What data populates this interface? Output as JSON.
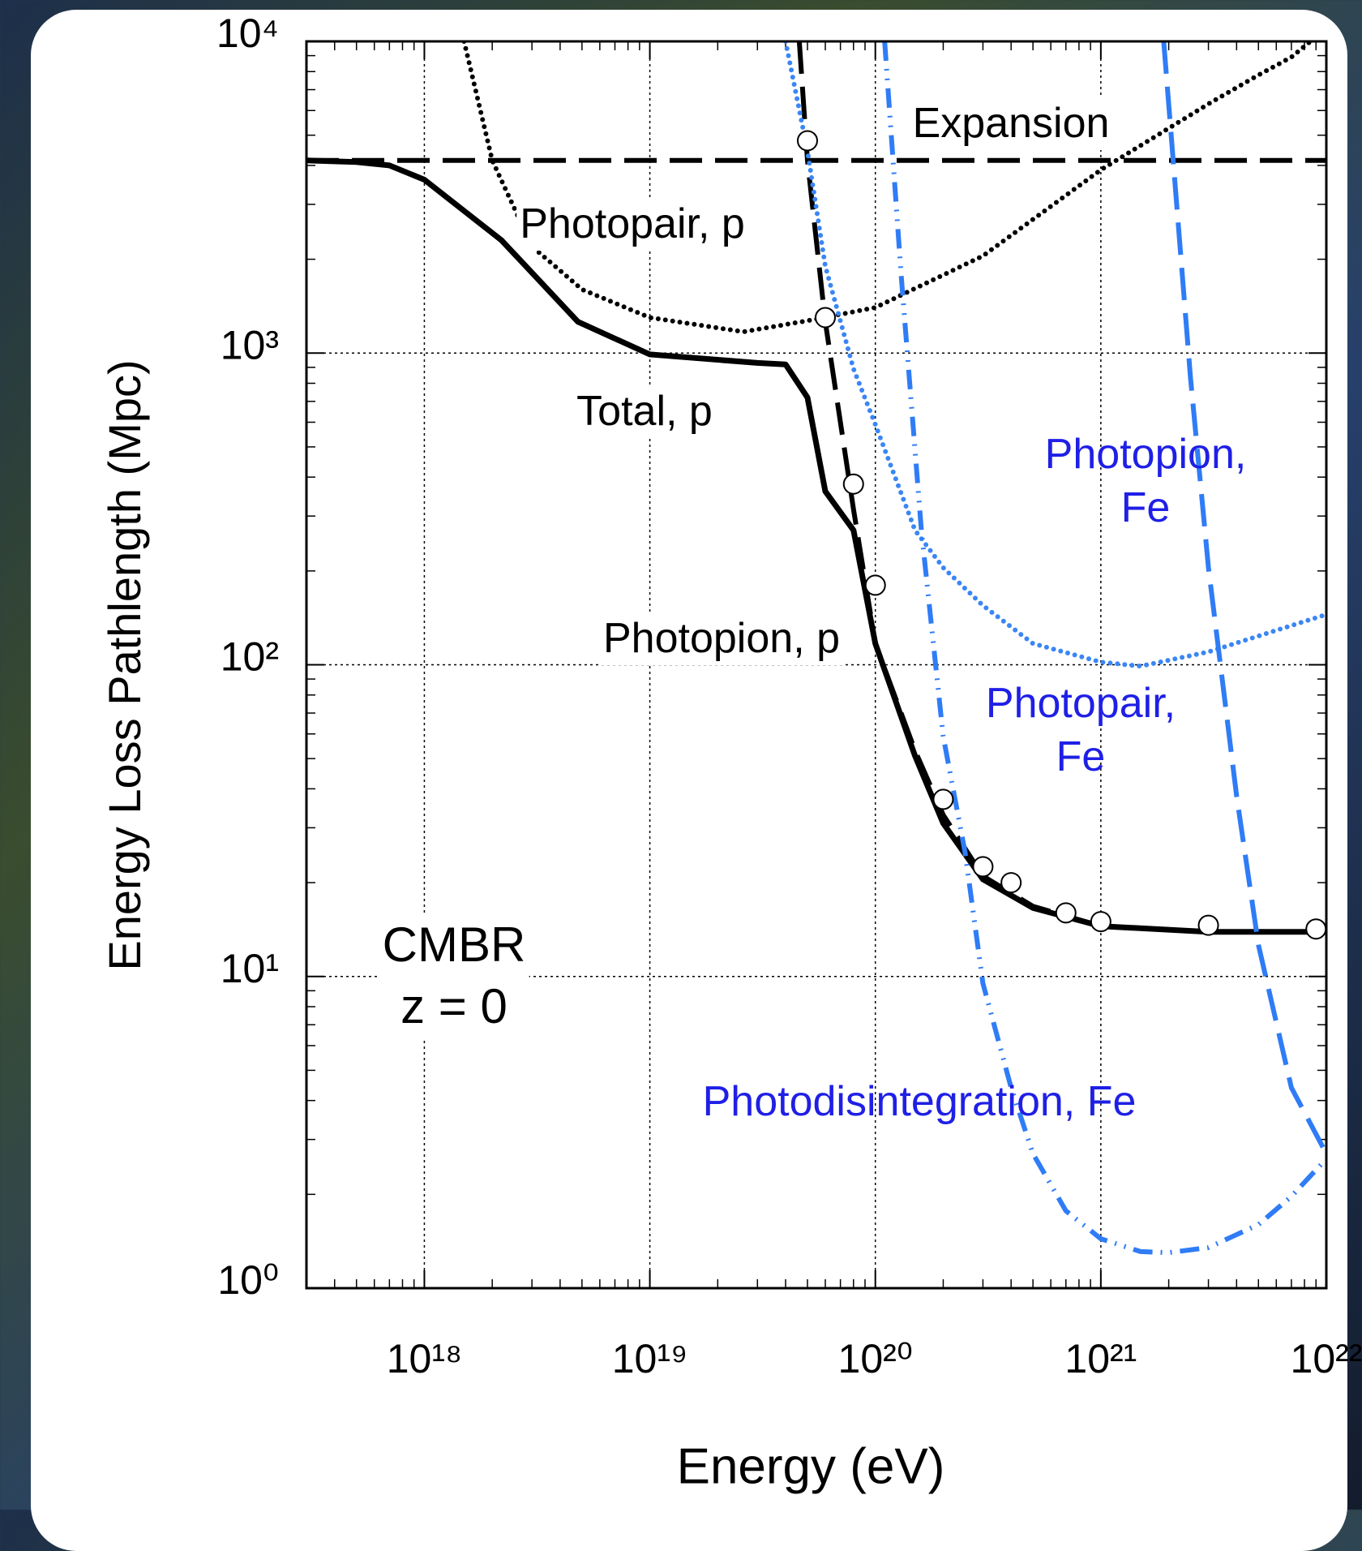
{
  "chart_data": {
    "type": "line",
    "xlabel": "Energy (eV)",
    "ylabel": "Energy Loss Pathlength (Mpc)",
    "xscale": "log",
    "yscale": "log",
    "xlim": [
      3e+17,
      1e+22
    ],
    "ylim": [
      1,
      10000
    ],
    "xticks": [
      {
        "value": 1e+18,
        "label": "10¹⁸"
      },
      {
        "value": 1e+19,
        "label": "10¹⁹"
      },
      {
        "value": 1e+20,
        "label": "10²⁰"
      },
      {
        "value": 1e+21,
        "label": "10²¹"
      },
      {
        "value": 1e+22,
        "label": "10²²"
      }
    ],
    "yticks": [
      {
        "value": 1,
        "label": "10⁰"
      },
      {
        "value": 10,
        "label": "10¹"
      },
      {
        "value": 100,
        "label": "10²"
      },
      {
        "value": 1000,
        "label": "10³"
      },
      {
        "value": 10000,
        "label": "10⁴"
      }
    ],
    "grid": true,
    "series": [
      {
        "color": "#000000",
        "style": "dashed",
        "x": [
          3e+17,
          1e+22
        ],
        "values": [
          4150,
          4150
        ]
      },
      {
        "color": "#000000",
        "style": "dotted",
        "x": [
          1.5e+18,
          2e+18,
          3e+18,
          5e+18,
          1e+19,
          2.6e+19,
          5e+19,
          1e+20,
          3e+20,
          1e+21,
          3e+21,
          5e+21,
          7e+21,
          8.5e+21
        ],
        "values": [
          10000,
          4150,
          2200,
          1600,
          1300,
          1170,
          1270,
          1400,
          2050,
          3870,
          6300,
          7800,
          8900,
          10000
        ]
      },
      {
        "color": "#000000",
        "style": "solid",
        "x": [
          3e+17,
          5e+17,
          7e+17,
          1e+18,
          2.2e+18,
          4.8e+18,
          1e+19,
          3e+19,
          4e+19,
          5e+19,
          6e+19,
          8e+19,
          1e+20,
          1.5e+20,
          2e+20,
          3e+20,
          5e+20,
          1e+21,
          3e+21,
          1e+22
        ],
        "values": [
          4150,
          4100,
          4000,
          3600,
          2300,
          1260,
          990,
          930,
          920,
          720,
          360,
          270,
          117,
          51,
          31,
          20.5,
          16.6,
          14.5,
          13.9,
          13.9
        ]
      },
      {
        "color": "#000000",
        "style": "dashed",
        "x": [
          4.6e+19,
          5e+19,
          6e+19,
          8e+19,
          1e+20,
          1.5e+20,
          2e+20,
          3e+20,
          5e+20,
          1e+21,
          3e+21,
          1e+22
        ],
        "values": [
          10000,
          4150,
          1260,
          315,
          117,
          53,
          33,
          21,
          16.8,
          14.5,
          13.9,
          13.9
        ]
      },
      {
        "color": "#3a86f5",
        "style": "dotted",
        "x": [
          4e+19,
          5e+19,
          6e+19,
          8e+19,
          1e+20,
          1.5e+20,
          2e+20,
          3e+20,
          5e+20,
          1e+21,
          1.5e+21,
          3e+21,
          1e+22
        ],
        "values": [
          10000,
          4450,
          1900,
          890,
          590,
          270,
          205,
          155,
          117,
          102,
          99,
          110,
          145
        ]
      },
      {
        "color": "#2f7cf6",
        "style": "dashed",
        "x": [
          1.9e+21,
          2.5e+21,
          3e+21,
          4e+21,
          5e+21,
          7e+21,
          1e+22
        ],
        "values": [
          10000,
          830,
          205,
          38,
          12.6,
          4.4,
          2.7
        ]
      },
      {
        "color": "#2f7cf6",
        "style": "dashdot",
        "x": [
          1.1e+20,
          1.3e+20,
          1.6e+20,
          2e+20,
          2.5e+20,
          3e+20,
          4e+20,
          5e+20,
          7e+20,
          1e+21,
          1.5e+21,
          2e+21,
          3e+21,
          5e+21,
          7e+21,
          1e+22
        ],
        "values": [
          10000,
          1800,
          270,
          59,
          25,
          9.5,
          4.4,
          2.7,
          1.77,
          1.44,
          1.31,
          1.3,
          1.35,
          1.6,
          1.97,
          2.6
        ]
      },
      {
        "type": "scatter",
        "color": "#ffffff",
        "x": [
          5e+19,
          6e+19,
          8e+19,
          1e+20,
          2e+20,
          3e+20,
          4e+20,
          7e+20,
          1e+21,
          3e+21,
          9e+21
        ],
        "values": [
          4800,
          1300,
          380,
          180,
          37,
          22.5,
          20,
          16,
          15,
          14.6,
          14.2
        ]
      }
    ],
    "annotations": [
      {
        "text": "Expansion",
        "color": "#000000"
      },
      {
        "text": "Photopair, p",
        "color": "#000000"
      },
      {
        "text": "Total, p",
        "color": "#000000"
      },
      {
        "text": "Photopion, p",
        "color": "#000000"
      },
      {
        "text": "Photopion,\nFe",
        "color": "#1f1fe6"
      },
      {
        "text": "Photopair,\nFe",
        "color": "#1f1fe6"
      },
      {
        "text": "Photodisintegration, Fe",
        "color": "#1f1fe6"
      },
      {
        "text": "CMBR\nz = 0",
        "color": "#000000"
      }
    ]
  }
}
